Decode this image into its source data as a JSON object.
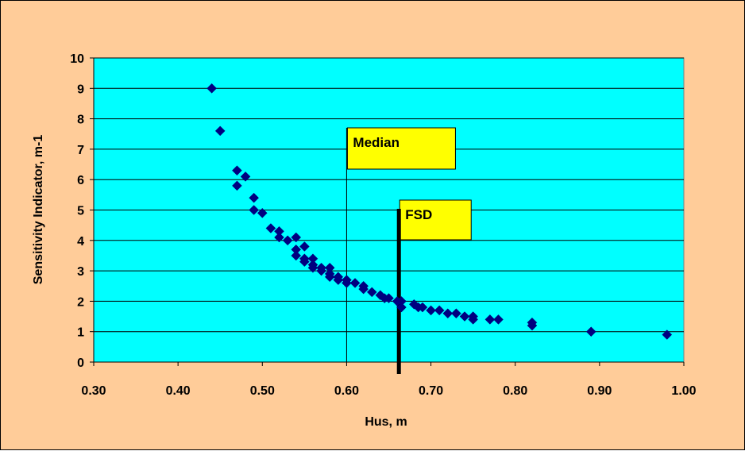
{
  "chart_data": {
    "type": "scatter",
    "xlabel": "Hus, m",
    "ylabel": "Sensitivity Indicator, m-1",
    "xlim": [
      0.3,
      1.0
    ],
    "ylim": [
      0,
      10
    ],
    "xticks": [
      "0.30",
      "0.40",
      "0.50",
      "0.60",
      "0.70",
      "0.80",
      "0.90",
      "1.00"
    ],
    "yticks": [
      "0",
      "1",
      "2",
      "3",
      "4",
      "5",
      "6",
      "7",
      "8",
      "9",
      "10"
    ],
    "grid": true,
    "colors": {
      "figure_background": "#FFCC99",
      "plot_background": "#00FFFF",
      "marker": "#000080",
      "callout_fill": "#FFFF00"
    },
    "marker": "diamond",
    "series": [
      {
        "x": [
          0.44,
          0.45,
          0.47,
          0.47,
          0.48,
          0.49,
          0.49,
          0.5,
          0.51,
          0.52,
          0.52,
          0.53,
          0.54,
          0.54,
          0.54,
          0.55,
          0.55,
          0.55,
          0.56,
          0.56,
          0.56,
          0.57,
          0.57,
          0.58,
          0.58,
          0.58,
          0.59,
          0.59,
          0.6,
          0.6,
          0.61,
          0.62,
          0.62,
          0.63,
          0.64,
          0.645,
          0.65,
          0.66,
          0.665,
          0.665,
          0.68,
          0.685,
          0.69,
          0.7,
          0.71,
          0.72,
          0.73,
          0.74,
          0.75,
          0.75,
          0.77,
          0.78,
          0.82,
          0.82,
          0.89,
          0.98
        ],
        "y": [
          9.0,
          7.6,
          6.3,
          5.8,
          6.1,
          5.4,
          5.0,
          4.9,
          4.4,
          4.3,
          4.1,
          4.0,
          4.1,
          3.7,
          3.5,
          3.8,
          3.4,
          3.3,
          3.4,
          3.2,
          3.1,
          3.1,
          3.0,
          3.1,
          2.9,
          2.8,
          2.8,
          2.7,
          2.7,
          2.6,
          2.6,
          2.5,
          2.4,
          2.3,
          2.2,
          2.1,
          2.1,
          2.0,
          2.0,
          1.8,
          1.9,
          1.8,
          1.8,
          1.7,
          1.7,
          1.6,
          1.6,
          1.5,
          1.5,
          1.4,
          1.4,
          1.4,
          1.3,
          1.2,
          1.0,
          0.9
        ]
      }
    ],
    "reference_lines": [
      {
        "label": "Median",
        "x": 0.6
      },
      {
        "label": "FSD",
        "x": 0.662
      }
    ]
  }
}
